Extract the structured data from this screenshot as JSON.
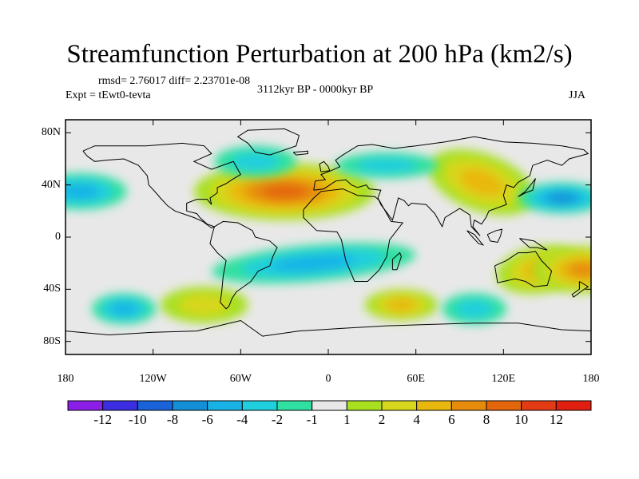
{
  "title": "Streamfunction Perturbation at 200 hPa (km2/s)",
  "stats": "rmsd= 2.76017 diff= 2.23701e-08",
  "experiment": "Expt = tEwt0-tevta",
  "period": "3112kyr BP - 0000kyr BP",
  "season": "JJA",
  "lat_labels": [
    {
      "text": "80N",
      "lat": 80
    },
    {
      "text": "40N",
      "lat": 40
    },
    {
      "text": "0",
      "lat": 0
    },
    {
      "text": "40S",
      "lat": -40
    },
    {
      "text": "80S",
      "lat": -80
    }
  ],
  "lon_labels": [
    {
      "text": "180",
      "lon": -180
    },
    {
      "text": "120W",
      "lon": -120
    },
    {
      "text": "60W",
      "lon": -60
    },
    {
      "text": "0",
      "lon": 0
    },
    {
      "text": "60E",
      "lon": 60
    },
    {
      "text": "120E",
      "lon": 120
    },
    {
      "text": "180",
      "lon": 180
    }
  ],
  "colorbar": {
    "colors": [
      "#8b1fe8",
      "#3a2ee0",
      "#1a62d8",
      "#128fd6",
      "#19b2e6",
      "#20cfdd",
      "#2fe0a0",
      "#e8e8e8",
      "#a8e020",
      "#d7d71e",
      "#e9b80f",
      "#e68c0c",
      "#e4660c",
      "#e33c14",
      "#e01f10"
    ],
    "labels": [
      "-12",
      "-10",
      "-8",
      "-6",
      "-4",
      "-2",
      "-1",
      "1",
      "2",
      "4",
      "6",
      "8",
      "10",
      "12"
    ]
  },
  "chart_data": {
    "type": "contour-map",
    "projection": "cylindrical-equidistant",
    "title": "Streamfunction Perturbation at 200 hPa (km2/s)",
    "levels": [
      -12,
      -10,
      -8,
      -6,
      -4,
      -2,
      -1,
      1,
      2,
      4,
      6,
      8,
      10,
      12
    ],
    "features": [
      {
        "name": "north-atlantic-africa-high",
        "lon": -30,
        "lat": 35,
        "peak": 10
      },
      {
        "name": "asia-pacific-high",
        "lon": 105,
        "lat": 42,
        "peak": 6
      },
      {
        "name": "australia-high",
        "lon": 145,
        "lat": -25,
        "peak": 6
      },
      {
        "name": "south-pacific-high",
        "lon": 175,
        "lat": -25,
        "peak": 7
      },
      {
        "name": "south-indian-high",
        "lon": 50,
        "lat": -52,
        "peak": 5
      },
      {
        "name": "south-atlantic-high",
        "lon": -85,
        "lat": -52,
        "peak": 4
      },
      {
        "name": "east-pacific-low",
        "lon": -170,
        "lat": 35,
        "peak": -6
      },
      {
        "name": "west-pacific-low",
        "lon": 160,
        "lat": 30,
        "peak": -8
      },
      {
        "name": "north-atlantic-low",
        "lon": -50,
        "lat": 58,
        "peak": -3
      },
      {
        "name": "eurasia-low",
        "lon": 40,
        "lat": 55,
        "peak": -4
      },
      {
        "name": "southern-tropical-low",
        "lon": -10,
        "lat": -20,
        "peak": -5
      },
      {
        "name": "south-pacific-low",
        "lon": -140,
        "lat": -55,
        "peak": -6
      },
      {
        "name": "southern-ocean-low",
        "lon": 100,
        "lat": -55,
        "peak": -4
      }
    ]
  }
}
